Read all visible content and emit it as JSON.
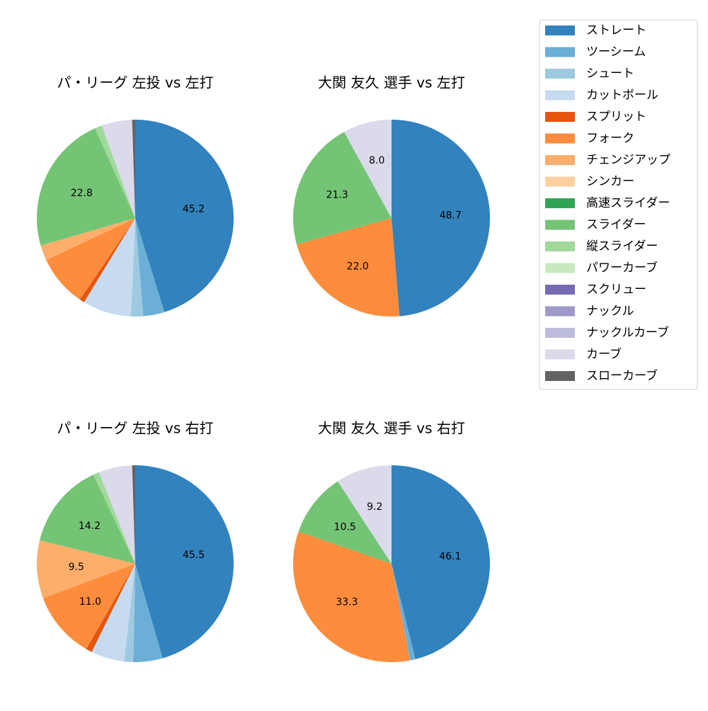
{
  "chart_data": [
    {
      "type": "pie",
      "title": "パ・リーグ 左投 vs 左打",
      "categories": [
        "ストレート",
        "ツーシーム",
        "シュート",
        "カットボール",
        "スプリット",
        "フォーク",
        "チェンジアップ",
        "スライダー",
        "縦スライダー",
        "カーブ",
        "スローカーブ"
      ],
      "values": [
        45.2,
        3.5,
        2.0,
        8.0,
        0.8,
        8.5,
        2.5,
        22.8,
        1.2,
        5.0,
        0.5
      ],
      "value_labels": [
        "45.2",
        null,
        null,
        null,
        null,
        null,
        null,
        "22.8",
        null,
        null,
        null
      ]
    },
    {
      "type": "pie",
      "title": "大関 友久 選手 vs 左打",
      "categories": [
        "ストレート",
        "フォーク",
        "スライダー",
        "カーブ"
      ],
      "values": [
        48.7,
        22.0,
        21.3,
        8.0
      ],
      "value_labels": [
        "48.7",
        "22.0",
        "21.3",
        "8.0"
      ]
    },
    {
      "type": "pie",
      "title": "パ・リーグ 左投 vs 右打",
      "categories": [
        "ストレート",
        "ツーシーム",
        "シュート",
        "カットボール",
        "スプリット",
        "フォーク",
        "チェンジアップ",
        "スライダー",
        "縦スライダー",
        "カーブ",
        "スローカーブ"
      ],
      "values": [
        45.5,
        4.8,
        1.5,
        5.5,
        1.0,
        11.0,
        9.5,
        14.2,
        1.0,
        5.5,
        0.5
      ],
      "value_labels": [
        "45.5",
        null,
        null,
        null,
        null,
        "11.0",
        "9.5",
        "14.2",
        null,
        null,
        null
      ]
    },
    {
      "type": "pie",
      "title": "大関 友久 選手 vs 右打",
      "categories": [
        "ストレート",
        "ツーシーム",
        "フォーク",
        "スライダー",
        "カーブ"
      ],
      "values": [
        46.1,
        0.9,
        33.3,
        10.5,
        9.2
      ],
      "value_labels": [
        "46.1",
        null,
        "33.3",
        "10.5",
        "9.2"
      ]
    }
  ],
  "legend": {
    "labels": [
      "ストレート",
      "ツーシーム",
      "シュート",
      "カットボール",
      "スプリット",
      "フォーク",
      "チェンジアップ",
      "シンカー",
      "高速スライダー",
      "スライダー",
      "縦スライダー",
      "パワーカーブ",
      "スクリュー",
      "ナックル",
      "ナックルカーブ",
      "カーブ",
      "スローカーブ"
    ],
    "colors": [
      "#3182bd",
      "#6baed6",
      "#9ecae1",
      "#c6dbef",
      "#e6550d",
      "#fd8d3c",
      "#fdae6b",
      "#fdd0a2",
      "#31a354",
      "#74c476",
      "#a1d99b",
      "#c7e9c0",
      "#756bb1",
      "#9e9ac8",
      "#bcbddc",
      "#dadaeb",
      "#636363"
    ]
  }
}
